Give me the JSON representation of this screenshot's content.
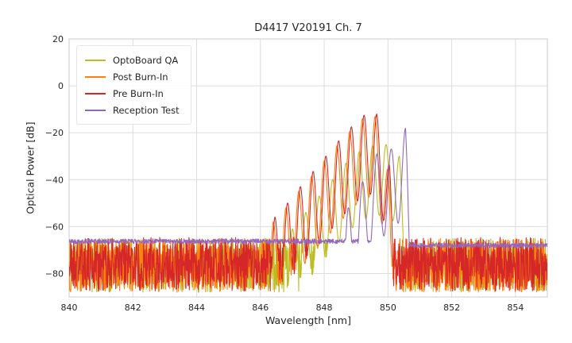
{
  "figure": {
    "title": "D4417 V20191 Ch. 7",
    "xlabel": "Wavelength [nm]",
    "ylabel": "Optical Power [dB]"
  },
  "chart_data": {
    "type": "line",
    "title": "D4417 V20191 Ch. 7",
    "xlabel": "Wavelength [nm]",
    "ylabel": "Optical Power [dB]",
    "xlim": [
      840,
      855
    ],
    "ylim": [
      -90,
      20
    ],
    "xticks": [
      840,
      842,
      844,
      846,
      848,
      850,
      852,
      854
    ],
    "yticks": [
      20,
      0,
      -20,
      -40,
      -60,
      -80
    ],
    "grid": true,
    "grid_color": "#dcdcdc",
    "legend_position": "upper left",
    "description": "Optical emission spectra of laser channel 7 measured at four test stages; multimode peak cluster near 846.5-850.5 nm over a noise floor of about -77 dB (-66 dB for Reception Test).",
    "series": [
      {
        "name": "OptoBoard QA",
        "color": "#bcbd22",
        "noise_floor_db": -76.5,
        "noise_amplitude_db": 11.5,
        "mode_spacing_nm": 0.42,
        "mode_depth_db": 30,
        "left_slope_db_per_nm": 70,
        "right_slope_db_per_nm": 150,
        "peaks": [
          [
            847.0,
            -61
          ],
          [
            847.42,
            -54
          ],
          [
            847.84,
            -47
          ],
          [
            848.26,
            -40
          ],
          [
            848.68,
            -33
          ],
          [
            849.1,
            -28
          ],
          [
            849.52,
            -25.5
          ],
          [
            849.94,
            -25
          ],
          [
            850.36,
            -30
          ]
        ]
      },
      {
        "name": "Post Burn-In",
        "color": "#ff7f0e",
        "noise_floor_db": -76.5,
        "noise_amplitude_db": 11.5,
        "mode_spacing_nm": 0.4,
        "mode_depth_db": 34,
        "left_slope_db_per_nm": 70,
        "right_slope_db_per_nm": 200,
        "peaks": [
          [
            846.4,
            -58
          ],
          [
            846.8,
            -52
          ],
          [
            847.2,
            -45
          ],
          [
            847.6,
            -38.5
          ],
          [
            848.0,
            -32
          ],
          [
            848.4,
            -25.5
          ],
          [
            848.8,
            -19.5
          ],
          [
            849.2,
            -14
          ],
          [
            849.6,
            -13
          ],
          [
            850.0,
            -36
          ]
        ]
      },
      {
        "name": "Pre Burn-In",
        "color": "#d62728",
        "noise_floor_db": -76,
        "noise_amplitude_db": 11.5,
        "mode_spacing_nm": 0.4,
        "mode_depth_db": 34,
        "left_slope_db_per_nm": 70,
        "right_slope_db_per_nm": 200,
        "peaks": [
          [
            846.45,
            -56
          ],
          [
            846.85,
            -50
          ],
          [
            847.25,
            -43
          ],
          [
            847.65,
            -36.5
          ],
          [
            848.05,
            -30
          ],
          [
            848.45,
            -23.5
          ],
          [
            848.85,
            -17.5
          ],
          [
            849.25,
            -12.5
          ],
          [
            849.65,
            -12
          ],
          [
            850.05,
            -34
          ]
        ]
      },
      {
        "name": "Reception Test",
        "color": "#9467bd",
        "noise_floor_db": -66.3,
        "noise_floor_end_db": -68,
        "noise_amplitude_db": 1.0,
        "mode_spacing_nm": 0.45,
        "mode_depth_db": 36,
        "left_slope_db_per_nm": 70,
        "right_slope_db_per_nm": 260,
        "peaks": [
          [
            848.75,
            -52
          ],
          [
            849.2,
            -41
          ],
          [
            849.65,
            -29
          ],
          [
            850.1,
            -27
          ],
          [
            850.55,
            -18
          ]
        ]
      }
    ]
  }
}
